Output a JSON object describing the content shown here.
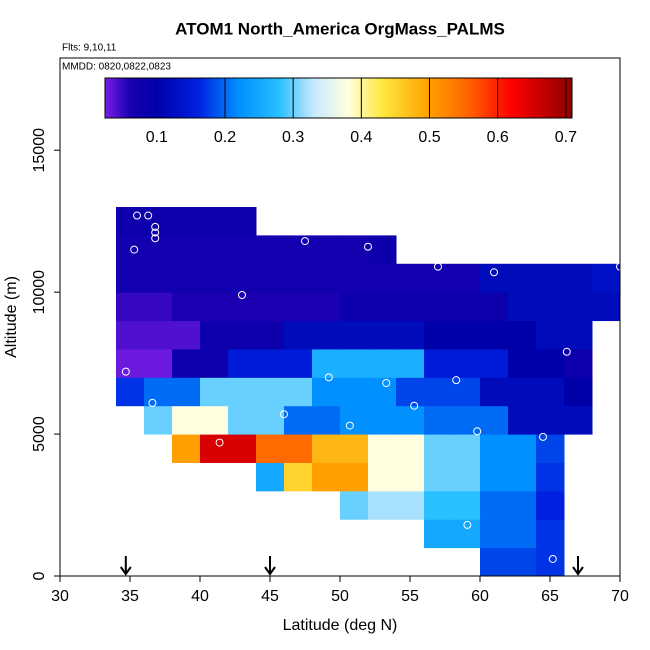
{
  "chart_data": {
    "type": "heatmap",
    "title": "ATOM1 North_America OrgMass_PALMS",
    "subtitle": "Flts: 9,10,11",
    "annotation": "MMDD: 0820,0822,0823",
    "x_label": "Latitude (deg N)",
    "y_label": "Altitude (m)",
    "xlim": [
      30,
      70
    ],
    "xticks": [
      30,
      35,
      40,
      45,
      50,
      55,
      60,
      65,
      70
    ],
    "ylim": [
      0,
      18250
    ],
    "yticks": [
      0,
      5000,
      10000,
      15000
    ],
    "xbins": [
      34,
      36,
      38,
      40,
      42,
      44,
      46,
      48,
      50,
      52,
      54,
      56,
      58,
      60,
      62,
      64,
      66,
      68,
      70
    ],
    "ybins": [
      0,
      1000,
      2000,
      3000,
      4000,
      5000,
      6000,
      7000,
      8000,
      9000,
      10000,
      11000,
      12000,
      13000
    ],
    "z": [
      [
        null,
        null,
        null,
        null,
        null,
        null,
        null,
        null,
        null,
        null,
        null,
        null,
        null,
        0.18,
        0.18,
        0.17,
        null,
        null
      ],
      [
        null,
        null,
        null,
        null,
        null,
        null,
        null,
        null,
        null,
        null,
        null,
        0.25,
        0.25,
        0.2,
        0.2,
        0.17,
        null,
        null
      ],
      [
        null,
        null,
        null,
        null,
        null,
        null,
        null,
        null,
        0.3,
        0.32,
        0.32,
        0.28,
        0.28,
        0.2,
        0.2,
        0.16,
        null,
        null
      ],
      [
        null,
        null,
        null,
        null,
        null,
        0.25,
        0.45,
        0.5,
        0.5,
        0.38,
        0.38,
        0.3,
        0.3,
        0.22,
        0.22,
        0.17,
        null,
        null
      ],
      [
        null,
        null,
        0.5,
        0.65,
        0.65,
        0.55,
        0.55,
        0.48,
        0.48,
        0.38,
        0.38,
        0.3,
        0.3,
        0.22,
        0.22,
        0.18,
        null,
        null
      ],
      [
        null,
        0.3,
        0.38,
        0.38,
        0.3,
        0.3,
        0.2,
        0.2,
        0.22,
        0.22,
        0.22,
        0.2,
        0.2,
        0.2,
        0.12,
        0.12,
        0.12,
        null
      ],
      [
        0.17,
        0.2,
        0.2,
        0.3,
        0.3,
        0.3,
        0.3,
        0.22,
        0.22,
        0.22,
        0.18,
        0.18,
        0.18,
        0.12,
        0.12,
        0.12,
        0.1,
        null
      ],
      [
        0.03,
        0.03,
        0.08,
        0.08,
        0.15,
        0.15,
        0.15,
        0.26,
        0.26,
        0.26,
        0.26,
        0.15,
        0.15,
        0.15,
        0.1,
        0.1,
        0.08,
        null
      ],
      [
        0.04,
        0.04,
        0.04,
        0.08,
        0.08,
        0.08,
        0.12,
        0.12,
        0.12,
        0.12,
        0.12,
        0.1,
        0.1,
        0.1,
        0.1,
        0.12,
        0.12,
        null
      ],
      [
        0.05,
        0.05,
        0.06,
        0.06,
        0.06,
        0.06,
        0.06,
        0.06,
        0.08,
        0.08,
        0.08,
        0.08,
        0.08,
        0.08,
        0.12,
        0.12,
        0.12,
        0.12
      ],
      [
        0.07,
        0.07,
        0.07,
        0.07,
        0.07,
        0.07,
        0.07,
        0.07,
        0.07,
        0.07,
        0.07,
        0.07,
        0.07,
        0.12,
        0.12,
        0.12,
        0.12,
        0.13
      ],
      [
        0.07,
        0.07,
        0.07,
        0.07,
        0.07,
        0.07,
        0.07,
        0.07,
        0.07,
        0.08,
        null,
        null,
        null,
        null,
        null,
        null,
        null,
        null
      ],
      [
        0.08,
        0.08,
        0.08,
        0.08,
        0.08,
        null,
        null,
        null,
        null,
        null,
        null,
        null,
        null,
        null,
        null,
        null,
        null,
        null
      ]
    ],
    "points": {
      "x": [
        35.5,
        36.3,
        36.8,
        36.8,
        36.8,
        35.3,
        47.5,
        52,
        57,
        61,
        70,
        43,
        66.2,
        34.7,
        49.2,
        53.3,
        58.3,
        36.6,
        46,
        55.3,
        50.7,
        59.8,
        64.5,
        41.4,
        59.1,
        65.2
      ],
      "y": [
        12700,
        12700,
        12300,
        12100,
        11900,
        11500,
        11800,
        11600,
        10900,
        10700,
        10900,
        9900,
        7900,
        7200,
        7000,
        6800,
        6900,
        6100,
        5700,
        6000,
        5300,
        5100,
        4900,
        4700,
        1800,
        600
      ]
    },
    "arrows": [
      34.7,
      45,
      67
    ],
    "colorbar": {
      "lim": [
        0.024,
        0.709
      ],
      "ticks": [
        0.1,
        0.2,
        0.3,
        0.4,
        0.5,
        0.6,
        0.7
      ],
      "colorscale": [
        [
          0.024,
          "#7a1ee6"
        ],
        [
          0.06,
          "#1a00b0"
        ],
        [
          0.1,
          "#0000a8"
        ],
        [
          0.16,
          "#0020e0"
        ],
        [
          0.22,
          "#0090ff"
        ],
        [
          0.28,
          "#28c0ff"
        ],
        [
          0.33,
          "#c8e8ff"
        ],
        [
          0.38,
          "#ffffe0"
        ],
        [
          0.43,
          "#ffe840"
        ],
        [
          0.5,
          "#ffa000"
        ],
        [
          0.56,
          "#ff6000"
        ],
        [
          0.62,
          "#ff0000"
        ],
        [
          0.709,
          "#8c0000"
        ]
      ]
    }
  }
}
